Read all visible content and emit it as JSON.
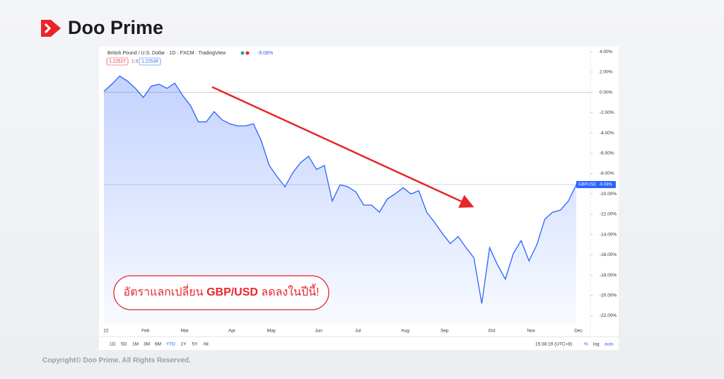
{
  "brand": {
    "name": "Doo Prime"
  },
  "footer": {
    "copyright": "Copyright© Doo Prime. All Rights Reserved."
  },
  "caption": {
    "before": "อัตราแลกเปลี่ยน ",
    "bold": "GBP/USD",
    "after": " ลดลงในปีนี้!"
  },
  "header": {
    "symbol": "British Pound / U.S. Dollar · 1D · FXCM · TradingView",
    "change": "-9.08%",
    "bid": "1.22527",
    "spread": "1:3",
    "ask": "1.22539"
  },
  "toolbar": {
    "ranges": [
      "1D",
      "5D",
      "1M",
      "3M",
      "6M",
      "YTD",
      "1Y",
      "5Y",
      "All"
    ],
    "active": "YTD",
    "time": "15:38:19 (UTC+8)",
    "percent": "%",
    "log": "log",
    "auto": "auto"
  },
  "chart_data": {
    "type": "line",
    "title": "British Pound / U.S. Dollar",
    "categories": [
      "22",
      null,
      null,
      null,
      null,
      "Feb",
      null,
      null,
      null,
      null,
      "Mar",
      null,
      null,
      null,
      null,
      null,
      "Apr",
      null,
      null,
      null,
      null,
      "May",
      null,
      null,
      null,
      null,
      null,
      "Jun",
      null,
      null,
      null,
      null,
      "Jul",
      null,
      null,
      null,
      null,
      null,
      "Aug",
      null,
      null,
      null,
      null,
      "Sep",
      null,
      null,
      null,
      null,
      null,
      "Oct",
      null,
      null,
      null,
      null,
      "Nov",
      null,
      null,
      null,
      null,
      null,
      "Dec"
    ],
    "series": [
      {
        "name": "GBPUSD",
        "color": "#2962ff",
        "values": [
          0.1,
          0.8,
          1.6,
          1.1,
          0.4,
          -0.5,
          0.6,
          0.8,
          0.4,
          0.9,
          -0.3,
          -1.3,
          -2.9,
          -2.9,
          -1.9,
          -2.7,
          -3.1,
          -3.3,
          -3.3,
          -3.1,
          -4.8,
          -7.2,
          -8.3,
          -9.3,
          -7.9,
          -6.9,
          -6.3,
          -7.6,
          -7.2,
          -10.7,
          -9.1,
          -9.3,
          -9.8,
          -11.1,
          -11.1,
          -11.8,
          -10.5,
          -10.0,
          -9.4,
          -10.0,
          -9.7,
          -11.8,
          -12.8,
          -13.9,
          -14.9,
          -14.2,
          -15.3,
          -16.3,
          -20.8,
          -15.3,
          -17.0,
          -18.4,
          -15.9,
          -14.6,
          -16.6,
          -15.0,
          -12.5,
          -11.8,
          -11.6,
          -10.7,
          -9.1
        ]
      }
    ],
    "price_tag": {
      "symbol": "GBPUSD",
      "value": -9.08,
      "label": "-9.08%"
    },
    "ylim": [
      -22.8,
      4.5
    ],
    "yticks": [
      {
        "value": 4,
        "label": "4.00%"
      },
      {
        "value": 2,
        "label": "2.00%"
      },
      {
        "value": 0,
        "label": "0.00%"
      },
      {
        "value": -2,
        "label": "-2.00%"
      },
      {
        "value": -4,
        "label": "-4.00%"
      },
      {
        "value": -6,
        "label": "-6.00%"
      },
      {
        "value": -8,
        "label": "-8.00%"
      },
      {
        "value": -10,
        "label": "-10.00%"
      },
      {
        "value": -12,
        "label": "-12.00%"
      },
      {
        "value": -14,
        "label": "-14.00%"
      },
      {
        "value": -16,
        "label": "-16.00%"
      },
      {
        "value": -18,
        "label": "-18.00%"
      },
      {
        "value": -20,
        "label": "-20.00%"
      },
      {
        "value": -22,
        "label": "-22.00%"
      }
    ]
  }
}
